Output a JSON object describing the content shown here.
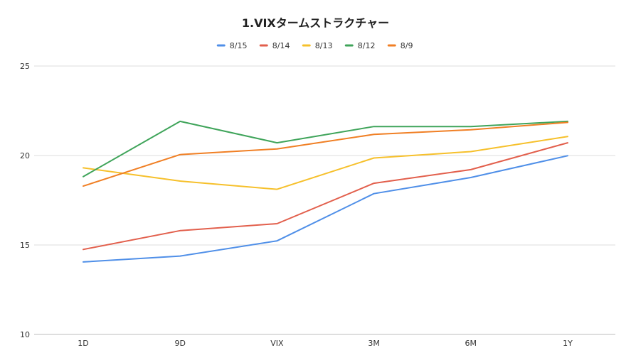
{
  "chart_data": {
    "type": "line",
    "title": "1.VIXタームストラクチャー",
    "xlabel": "",
    "ylabel": "",
    "categories": [
      "1D",
      "9D",
      "VIX",
      "3M",
      "6M",
      "1Y"
    ],
    "ylim": [
      10,
      25
    ],
    "yticks": [
      10,
      15,
      20,
      25
    ],
    "grid": true,
    "legend_position": "top",
    "series": [
      {
        "name": "8/15",
        "color": "#4f8fe8",
        "values": [
          14.05,
          14.38,
          15.23,
          17.87,
          18.77,
          19.99
        ]
      },
      {
        "name": "8/14",
        "color": "#e25f4c",
        "values": [
          14.75,
          15.8,
          16.19,
          18.45,
          19.21,
          20.71
        ]
      },
      {
        "name": "8/13",
        "color": "#f6c02b",
        "values": [
          19.31,
          18.57,
          18.11,
          19.86,
          20.22,
          21.06
        ]
      },
      {
        "name": "8/12",
        "color": "#3fa45a",
        "values": [
          18.82,
          21.91,
          20.71,
          21.62,
          21.62,
          21.91
        ]
      },
      {
        "name": "8/9",
        "color": "#f07f24",
        "values": [
          18.29,
          20.05,
          20.37,
          21.18,
          21.44,
          21.85
        ]
      }
    ]
  }
}
